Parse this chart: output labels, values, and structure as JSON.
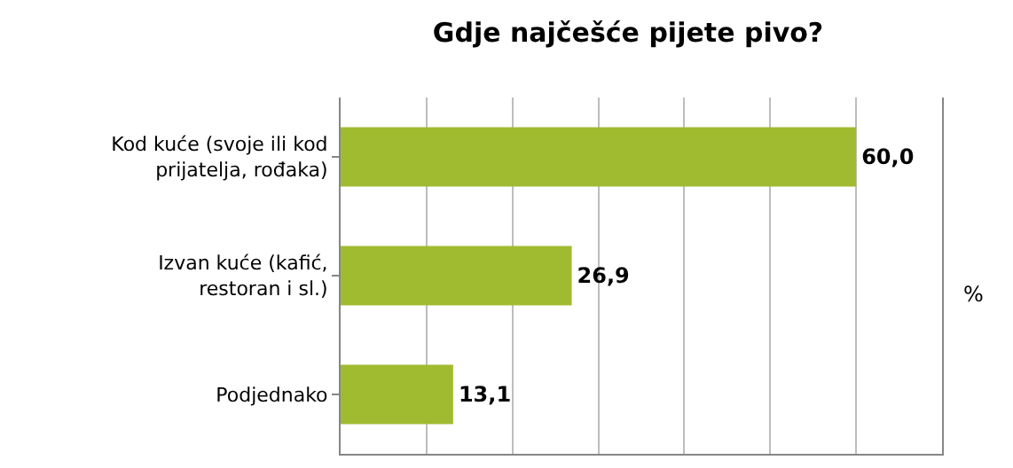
{
  "chart_data": {
    "type": "bar",
    "orientation": "horizontal",
    "title": "Gdje najčešće pijete pivo?",
    "xlabel": "%",
    "categories": [
      "Kod kuće (svoje ili kod prijatelja, rođaka)",
      "Izvan kuće (kafić, restoran i sl.)",
      "Podjednako"
    ],
    "values": [
      60.0,
      26.9,
      13.1
    ],
    "value_labels": [
      "60,0",
      "26,9",
      "13,1"
    ],
    "color": "#a0bb30",
    "xlim": [
      0,
      70
    ],
    "xticks": [
      {
        "value": 0,
        "label": null
      },
      {
        "value": 10,
        "label": null
      },
      {
        "value": 20,
        "label": null
      },
      {
        "value": 30,
        "label": null
      },
      {
        "value": 40,
        "label": null
      },
      {
        "value": 50,
        "label": null
      },
      {
        "value": 60,
        "label": null
      }
    ],
    "grid": "x",
    "legend": false,
    "tick_labels": "y"
  }
}
